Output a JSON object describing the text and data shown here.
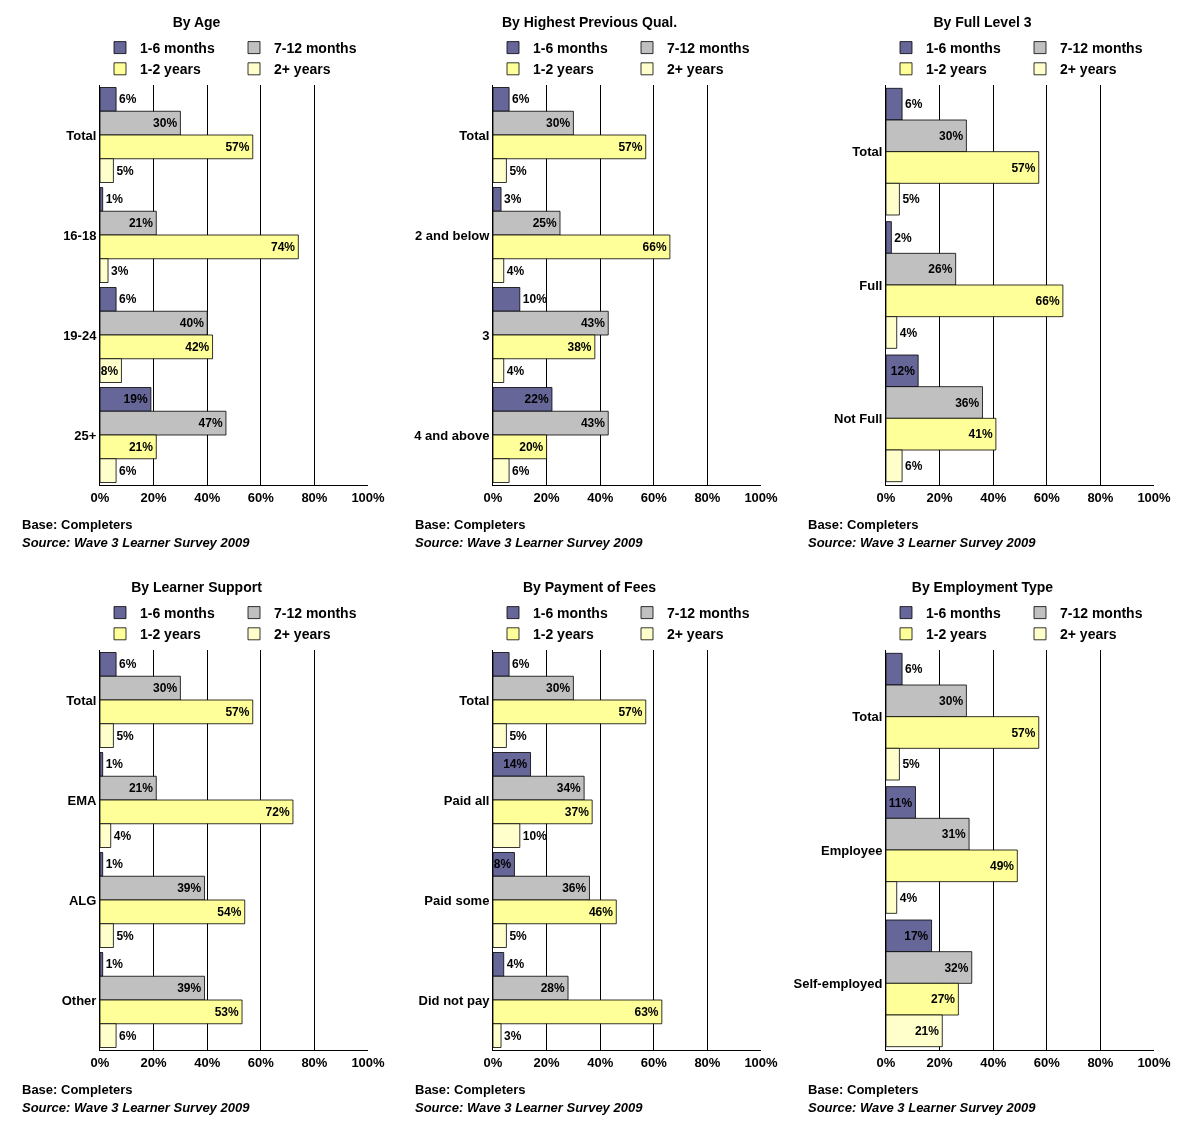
{
  "chart_data": [
    {
      "type": "bar",
      "orientation": "horizontal",
      "title": "By Age",
      "categories": [
        "Total",
        "16-18",
        "19-24",
        "25+"
      ],
      "series": [
        {
          "name": "1-6 months",
          "color": "#666699",
          "values": [
            6,
            1,
            6,
            19
          ],
          "value_labels": [
            "6%",
            "1%",
            "6%",
            "19%"
          ]
        },
        {
          "name": "7-12 months",
          "color": "#c0c0c0",
          "values": [
            30,
            21,
            40,
            47
          ],
          "value_labels": [
            "30%",
            "21%",
            "40%",
            "47%"
          ]
        },
        {
          "name": "1-2 years",
          "color": "#ffff99",
          "values": [
            57,
            74,
            42,
            21
          ],
          "value_labels": [
            "57%",
            "74%",
            "42%",
            "21%"
          ]
        },
        {
          "name": "2+ years",
          "color": "#ffffcc",
          "values": [
            5,
            3,
            8,
            6
          ],
          "value_labels": [
            "5%",
            "3%",
            "8%",
            "6%"
          ]
        }
      ],
      "xlim": [
        0,
        100
      ],
      "xticks": [
        {
          "value": 0,
          "label": "0%"
        },
        {
          "value": 20,
          "label": "20%"
        },
        {
          "value": 40,
          "label": "40%"
        },
        {
          "value": 60,
          "label": "60%"
        },
        {
          "value": 80,
          "label": "80%"
        },
        {
          "value": 100,
          "label": "100%"
        }
      ],
      "grid": "x",
      "legend": "top",
      "annotations": [
        "Base: Completers",
        "Source: Wave 3 Learner Survey 2009"
      ]
    },
    {
      "type": "bar",
      "orientation": "horizontal",
      "title": "By Highest Previous Qual.",
      "categories": [
        "Total",
        "2 and below",
        "3",
        "4 and above"
      ],
      "series": [
        {
          "name": "1-6 months",
          "color": "#666699",
          "values": [
            6,
            3,
            10,
            22
          ],
          "value_labels": [
            "6%",
            "3%",
            "10%",
            "22%"
          ]
        },
        {
          "name": "7-12 months",
          "color": "#c0c0c0",
          "values": [
            30,
            25,
            43,
            43
          ],
          "value_labels": [
            "30%",
            "25%",
            "43%",
            "43%"
          ]
        },
        {
          "name": "1-2 years",
          "color": "#ffff99",
          "values": [
            57,
            66,
            38,
            20
          ],
          "value_labels": [
            "57%",
            "66%",
            "38%",
            "20%"
          ]
        },
        {
          "name": "2+ years",
          "color": "#ffffcc",
          "values": [
            5,
            4,
            4,
            6
          ],
          "value_labels": [
            "5%",
            "4%",
            "4%",
            "6%"
          ]
        }
      ],
      "xlim": [
        0,
        100
      ],
      "xticks": [
        {
          "value": 0,
          "label": "0%"
        },
        {
          "value": 20,
          "label": "20%"
        },
        {
          "value": 40,
          "label": "40%"
        },
        {
          "value": 60,
          "label": "60%"
        },
        {
          "value": 80,
          "label": "80%"
        },
        {
          "value": 100,
          "label": "100%"
        }
      ],
      "grid": "x",
      "legend": "top",
      "annotations": [
        "Base: Completers",
        "Source: Wave 3 Learner Survey 2009"
      ]
    },
    {
      "type": "bar",
      "orientation": "horizontal",
      "title": "By Full Level 3",
      "categories": [
        "Total",
        "Full",
        "Not Full"
      ],
      "series": [
        {
          "name": "1-6 months",
          "color": "#666699",
          "values": [
            6,
            2,
            12
          ],
          "value_labels": [
            "6%",
            "2%",
            "12%"
          ]
        },
        {
          "name": "7-12 months",
          "color": "#c0c0c0",
          "values": [
            30,
            26,
            36
          ],
          "value_labels": [
            "30%",
            "26%",
            "36%"
          ]
        },
        {
          "name": "1-2 years",
          "color": "#ffff99",
          "values": [
            57,
            66,
            41
          ],
          "value_labels": [
            "57%",
            "66%",
            "41%"
          ]
        },
        {
          "name": "2+ years",
          "color": "#ffffcc",
          "values": [
            5,
            4,
            6
          ],
          "value_labels": [
            "5%",
            "4%",
            "6%"
          ]
        }
      ],
      "xlim": [
        0,
        100
      ],
      "xticks": [
        {
          "value": 0,
          "label": "0%"
        },
        {
          "value": 20,
          "label": "20%"
        },
        {
          "value": 40,
          "label": "40%"
        },
        {
          "value": 60,
          "label": "60%"
        },
        {
          "value": 80,
          "label": "80%"
        },
        {
          "value": 100,
          "label": "100%"
        }
      ],
      "grid": "x",
      "legend": "top",
      "annotations": [
        "Base: Completers",
        "Source: Wave 3 Learner Survey 2009"
      ]
    },
    {
      "type": "bar",
      "orientation": "horizontal",
      "title": "By Learner Support",
      "categories": [
        "Total",
        "EMA",
        "ALG",
        "Other"
      ],
      "series": [
        {
          "name": "1-6 months",
          "color": "#666699",
          "values": [
            6,
            1,
            1,
            1
          ],
          "value_labels": [
            "6%",
            "1%",
            "1%",
            "1%"
          ]
        },
        {
          "name": "7-12 months",
          "color": "#c0c0c0",
          "values": [
            30,
            21,
            39,
            39
          ],
          "value_labels": [
            "30%",
            "21%",
            "39%",
            "39%"
          ]
        },
        {
          "name": "1-2 years",
          "color": "#ffff99",
          "values": [
            57,
            72,
            54,
            53
          ],
          "value_labels": [
            "57%",
            "72%",
            "54%",
            "53%"
          ]
        },
        {
          "name": "2+ years",
          "color": "#ffffcc",
          "values": [
            5,
            4,
            5,
            6
          ],
          "value_labels": [
            "5%",
            "4%",
            "5%",
            "6%"
          ]
        }
      ],
      "xlim": [
        0,
        100
      ],
      "xticks": [
        {
          "value": 0,
          "label": "0%"
        },
        {
          "value": 20,
          "label": "20%"
        },
        {
          "value": 40,
          "label": "40%"
        },
        {
          "value": 60,
          "label": "60%"
        },
        {
          "value": 80,
          "label": "80%"
        },
        {
          "value": 100,
          "label": "100%"
        }
      ],
      "grid": "x",
      "legend": "top",
      "annotations": [
        "Base: Completers",
        "Source: Wave 3 Learner Survey 2009"
      ]
    },
    {
      "type": "bar",
      "orientation": "horizontal",
      "title": "By Payment of Fees",
      "categories": [
        "Total",
        "Paid all",
        "Paid some",
        "Did not pay"
      ],
      "series": [
        {
          "name": "1-6 months",
          "color": "#666699",
          "values": [
            6,
            14,
            8,
            4
          ],
          "value_labels": [
            "6%",
            "14%",
            "8%",
            "4%"
          ]
        },
        {
          "name": "7-12 months",
          "color": "#c0c0c0",
          "values": [
            30,
            34,
            36,
            28
          ],
          "value_labels": [
            "30%",
            "34%",
            "36%",
            "28%"
          ]
        },
        {
          "name": "1-2 years",
          "color": "#ffff99",
          "values": [
            57,
            37,
            46,
            63
          ],
          "value_labels": [
            "57%",
            "37%",
            "46%",
            "63%"
          ]
        },
        {
          "name": "2+ years",
          "color": "#ffffcc",
          "values": [
            5,
            10,
            5,
            3
          ],
          "value_labels": [
            "5%",
            "10%",
            "5%",
            "3%"
          ]
        }
      ],
      "xlim": [
        0,
        100
      ],
      "xticks": [
        {
          "value": 0,
          "label": "0%"
        },
        {
          "value": 20,
          "label": "20%"
        },
        {
          "value": 40,
          "label": "40%"
        },
        {
          "value": 60,
          "label": "60%"
        },
        {
          "value": 80,
          "label": "80%"
        },
        {
          "value": 100,
          "label": "100%"
        }
      ],
      "grid": "x",
      "legend": "top",
      "annotations": [
        "Base: Completers",
        "Source: Wave 3 Learner Survey 2009"
      ]
    },
    {
      "type": "bar",
      "orientation": "horizontal",
      "title": "By Employment Type",
      "categories": [
        "Total",
        "Employee",
        "Self-employed"
      ],
      "series": [
        {
          "name": "1-6 months",
          "color": "#666699",
          "values": [
            6,
            11,
            17
          ],
          "value_labels": [
            "6%",
            "11%",
            "17%"
          ]
        },
        {
          "name": "7-12 months",
          "color": "#c0c0c0",
          "values": [
            30,
            31,
            32
          ],
          "value_labels": [
            "30%",
            "31%",
            "32%"
          ]
        },
        {
          "name": "1-2 years",
          "color": "#ffff99",
          "values": [
            57,
            49,
            27
          ],
          "value_labels": [
            "57%",
            "49%",
            "27%"
          ]
        },
        {
          "name": "2+ years",
          "color": "#ffffcc",
          "values": [
            5,
            4,
            21
          ],
          "value_labels": [
            "5%",
            "4%",
            "21%"
          ]
        }
      ],
      "xlim": [
        0,
        100
      ],
      "xticks": [
        {
          "value": 0,
          "label": "0%"
        },
        {
          "value": 20,
          "label": "20%"
        },
        {
          "value": 40,
          "label": "40%"
        },
        {
          "value": 60,
          "label": "60%"
        },
        {
          "value": 80,
          "label": "80%"
        },
        {
          "value": 100,
          "label": "100%"
        }
      ],
      "grid": "x",
      "legend": "top",
      "annotations": [
        "Base: Completers",
        "Source: Wave 3 Learner Survey 2009"
      ]
    }
  ]
}
